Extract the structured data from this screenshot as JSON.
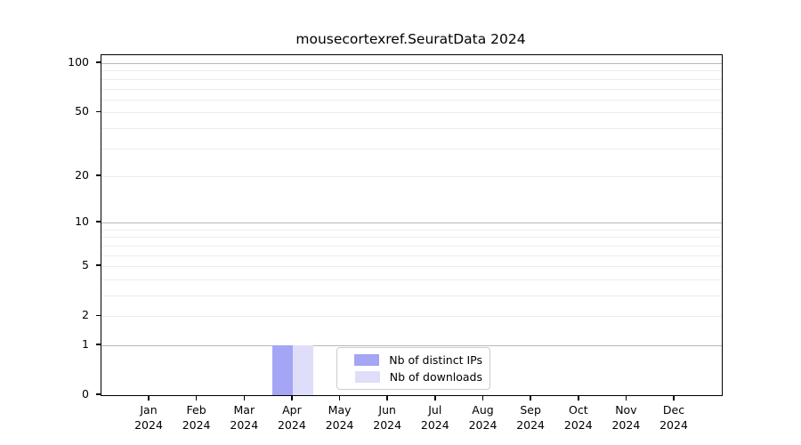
{
  "figure": {
    "title": "mousecortexref.SeuratData 2024"
  },
  "chart_data": {
    "type": "bar",
    "title": "mousecortexref.SeuratData 2024",
    "x_categories": [
      "Jan",
      "Feb",
      "Mar",
      "Apr",
      "May",
      "Jun",
      "Jul",
      "Aug",
      "Sep",
      "Oct",
      "Nov",
      "Dec"
    ],
    "x_year": "2024",
    "series": [
      {
        "name": "Nb of distinct IPs",
        "color": "#a5a5f5",
        "values": [
          0,
          0,
          0,
          1,
          0,
          0,
          0,
          0,
          0,
          0,
          0,
          0
        ]
      },
      {
        "name": "Nb of downloads",
        "color": "#dedefa",
        "values": [
          0,
          0,
          0,
          1,
          0,
          0,
          0,
          0,
          0,
          0,
          0,
          0
        ]
      }
    ],
    "y_scale": "log1p",
    "y_ticks": [
      0,
      1,
      2,
      5,
      10,
      20,
      50,
      100
    ],
    "y_major_decades": [
      1,
      10,
      100
    ],
    "y_minor_gridlines": [
      3,
      4,
      6,
      7,
      8,
      9,
      30,
      40,
      60,
      70,
      80,
      90
    ],
    "ylim": [
      0,
      112
    ],
    "grid": true,
    "legend": {
      "position": "inside-bottom-center",
      "entries": [
        "Nb of distinct IPs",
        "Nb of downloads"
      ]
    },
    "colors": {
      "spine": "#000000",
      "grid_major": "#b8b8b8",
      "grid_minor": "#ececec",
      "background": "#ffffff"
    }
  }
}
